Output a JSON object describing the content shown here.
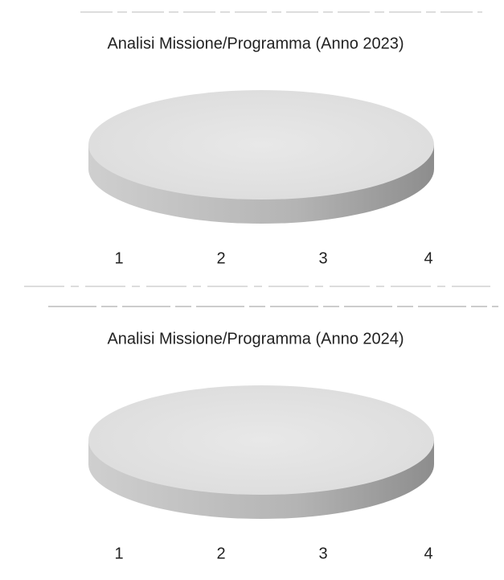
{
  "chart_data": [
    {
      "type": "pie",
      "title": "Analisi Missione/Programma (Anno 2023)",
      "categories": [
        "1",
        "2",
        "3",
        "4"
      ]
    },
    {
      "type": "pie",
      "title": "Analisi Missione/Programma (Anno 2024)",
      "categories": [
        "1",
        "2",
        "3",
        "4"
      ]
    }
  ]
}
